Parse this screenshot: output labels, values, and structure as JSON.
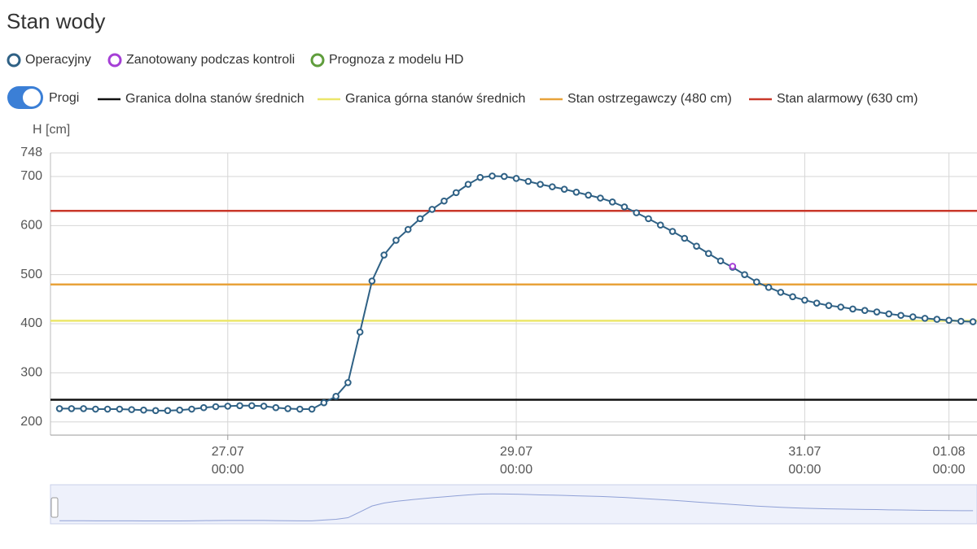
{
  "chart_data": {
    "type": "line",
    "title": "Stan wody",
    "y_label": "H [cm]",
    "toggle_label": "Progi",
    "toggle_on": true,
    "grid": true,
    "xlim": [
      "25.07 18:30",
      "01.08 04:40"
    ],
    "xticks": [
      "27.07 00:00",
      "29.07 00:00",
      "31.07 00:00",
      "01.08 00:00"
    ],
    "ylim": [
      173,
      748
    ],
    "yticks": [
      748,
      700,
      600,
      500,
      400,
      300,
      200
    ],
    "series": [
      {
        "name": "Operacyjny",
        "color": "#2f6185",
        "x": [
          "25.07 20:00",
          "25.07 22:00",
          "26.07 00:00",
          "26.07 02:00",
          "26.07 04:00",
          "26.07 06:00",
          "26.07 08:00",
          "26.07 10:00",
          "26.07 12:00",
          "26.07 14:00",
          "26.07 16:00",
          "26.07 18:00",
          "26.07 20:00",
          "26.07 22:00",
          "27.07 00:00",
          "27.07 02:00",
          "27.07 04:00",
          "27.07 06:00",
          "27.07 08:00",
          "27.07 10:00",
          "27.07 12:00",
          "27.07 14:00",
          "27.07 16:00",
          "27.07 18:00",
          "27.07 20:00",
          "27.07 22:00",
          "28.07 00:00",
          "28.07 02:00",
          "28.07 04:00",
          "28.07 06:00",
          "28.07 08:00",
          "28.07 10:00",
          "28.07 12:00",
          "28.07 14:00",
          "28.07 16:00",
          "28.07 18:00",
          "28.07 20:00",
          "28.07 22:00",
          "29.07 00:00",
          "29.07 02:00",
          "29.07 04:00",
          "29.07 06:00",
          "29.07 08:00",
          "29.07 10:00",
          "29.07 12:00",
          "29.07 14:00",
          "29.07 16:00",
          "29.07 18:00",
          "29.07 20:00",
          "29.07 22:00",
          "30.07 00:00",
          "30.07 02:00",
          "30.07 04:00",
          "30.07 06:00",
          "30.07 08:00",
          "30.07 10:00",
          "30.07 12:00",
          "30.07 14:00",
          "30.07 16:00",
          "30.07 18:00",
          "30.07 20:00",
          "30.07 22:00",
          "31.07 00:00",
          "31.07 02:00",
          "31.07 04:00",
          "31.07 06:00",
          "31.07 08:00",
          "31.07 10:00",
          "31.07 12:00",
          "31.07 14:00",
          "31.07 16:00",
          "31.07 18:00",
          "31.07 20:00",
          "31.07 22:00",
          "01.08 00:00",
          "01.08 02:00",
          "01.08 04:00"
        ],
        "values": [
          227,
          227,
          227,
          226,
          226,
          226,
          225,
          224,
          223,
          223,
          224,
          226,
          229,
          231,
          232,
          233,
          233,
          232,
          229,
          227,
          226,
          226,
          239,
          252,
          280,
          383,
          487,
          540,
          570,
          592,
          614,
          633,
          650,
          667,
          684,
          698,
          701,
          700,
          696,
          690,
          684,
          679,
          674,
          668,
          662,
          656,
          648,
          638,
          626,
          614,
          601,
          588,
          574,
          558,
          543,
          528,
          515,
          500,
          485,
          474,
          464,
          455,
          448,
          442,
          437,
          434,
          430,
          427,
          424,
          420,
          417,
          414,
          411,
          409,
          407,
          405,
          404
        ]
      },
      {
        "name": "Zanotowany podczas kontroli",
        "color": "#a53fd6",
        "x": [
          "30.07 12:00"
        ],
        "values": [
          517
        ]
      },
      {
        "name": "Prognoza z modelu HD",
        "color": "#5f9d3c",
        "x": [],
        "values": []
      }
    ],
    "thresholds": [
      {
        "name": "Granica dolna stanów średnich",
        "value": 245,
        "color": "#111111"
      },
      {
        "name": "Granica górna stanów średnich",
        "value": 406,
        "color": "#ece66a"
      },
      {
        "name": "Stan ostrzegawczy (480 cm)",
        "value": 480,
        "color": "#e8a23a"
      },
      {
        "name": "Stan alarmowy (630 cm)",
        "value": 630,
        "color": "#c9382a"
      }
    ]
  }
}
